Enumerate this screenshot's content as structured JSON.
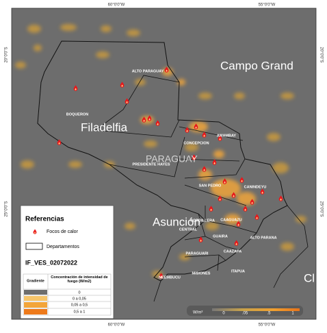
{
  "coordinates": {
    "lon": [
      "60°0'0\"W",
      "55°0'0\"W"
    ],
    "lat": [
      "20°0'0\"S",
      "25°0'0\"S"
    ]
  },
  "places": [
    "Campo Grand",
    "Filadelfia",
    "PARAGUAY",
    "Asunción",
    "Cl"
  ],
  "departments": [
    "ALTO PARAGUAY",
    "BOQUERON",
    "CONCEPCION",
    "AMAMBAY",
    "PRESIDENTE HAYES",
    "SAN PEDRO",
    "CANINDEYU",
    "CAAGUAZU",
    "CORDILLERA",
    "CENTRAL",
    "GUAIRA",
    "ALTO PARANA",
    "CAAZAPA",
    "PARAGUARI",
    "MISIONES",
    "ITAPUA",
    "NEEMBUCU"
  ],
  "colorbar": {
    "title": "W/m²",
    "ticks": [
      "0",
      ".05",
      ".5",
      "1"
    ]
  },
  "legend": {
    "title": "Referencias",
    "items": [
      "Focos de calor",
      "Departamentos"
    ],
    "layer_name": "IF_VES_02072022",
    "table": {
      "headers": [
        "Gradiente",
        "Concentración de intensidad de fuego (W/m2)"
      ],
      "rows": [
        "0",
        "0 a 0,05",
        "0,05 a 0,5",
        "0,5 a 1"
      ]
    }
  }
}
